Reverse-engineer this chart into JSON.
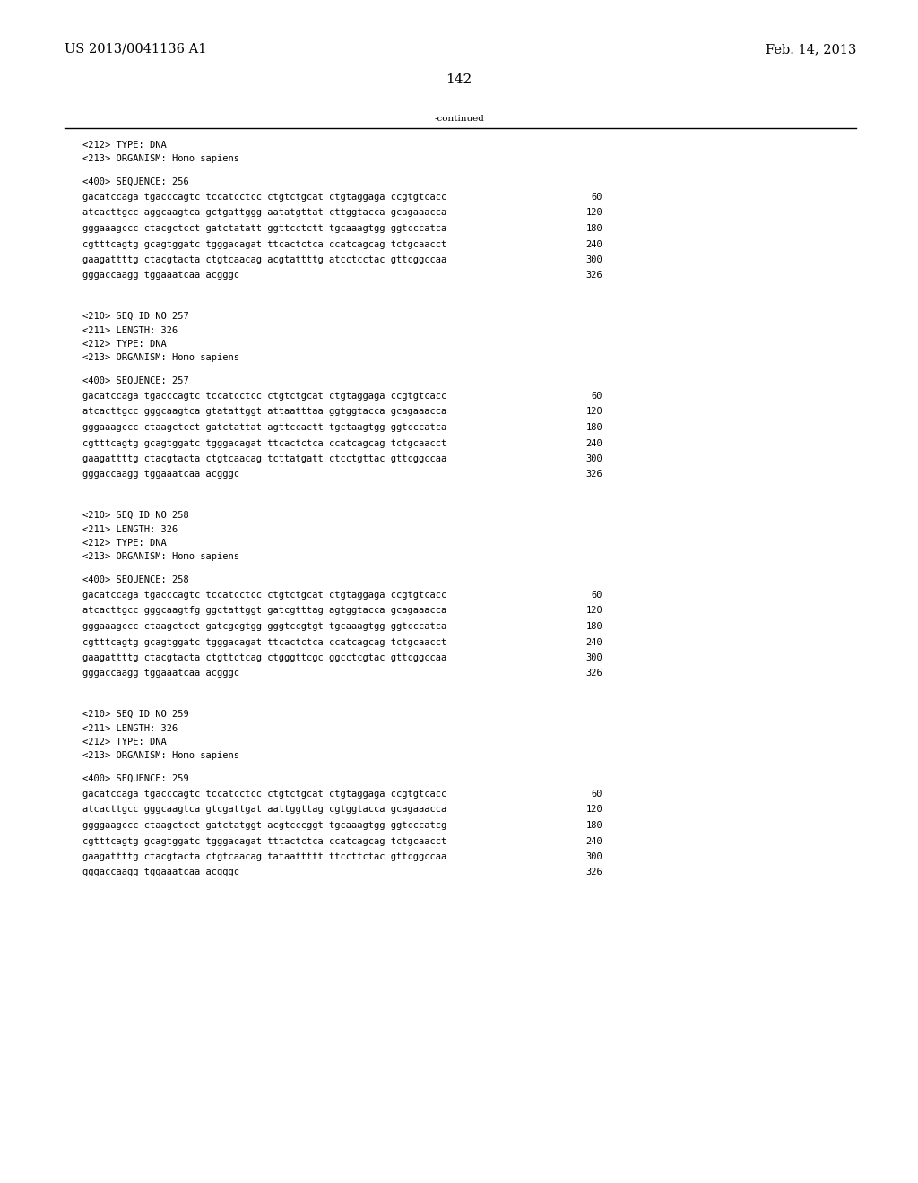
{
  "header_left": "US 2013/0041136 A1",
  "header_right": "Feb. 14, 2013",
  "page_number": "142",
  "continued_label": "-continued",
  "background_color": "#ffffff",
  "text_color": "#000000",
  "font_size_header": 10.5,
  "font_size_body": 7.5,
  "font_size_page": 11,
  "sections": [
    {
      "meta": [
        "<212> TYPE: DNA",
        "<213> ORGANISM: Homo sapiens"
      ],
      "sequence_label": "<400> SEQUENCE: 256",
      "lines": [
        [
          "gacatccaga tgacccagtc tccatcctcc ctgtctgcat ctgtaggaga ccgtgtcacc",
          "60"
        ],
        [
          "atcacttgcc aggcaagtca gctgattggg aatatgttat cttggtacca gcagaaacca",
          "120"
        ],
        [
          "gggaaagccc ctacgctcct gatctatatt ggttcctctt tgcaaagtgg ggtcccatca",
          "180"
        ],
        [
          "cgtttcagtg gcagtggatc tgggacagat ttcactctca ccatcagcag tctgcaacct",
          "240"
        ],
        [
          "gaagattttg ctacgtacta ctgtcaacag acgtattttg atcctcctac gttcggccaa",
          "300"
        ],
        [
          "gggaccaagg tggaaatcaa acgggc",
          "326"
        ]
      ]
    },
    {
      "meta": [
        "<210> SEQ ID NO 257",
        "<211> LENGTH: 326",
        "<212> TYPE: DNA",
        "<213> ORGANISM: Homo sapiens"
      ],
      "sequence_label": "<400> SEQUENCE: 257",
      "lines": [
        [
          "gacatccaga tgacccagtc tccatcctcc ctgtctgcat ctgtaggaga ccgtgtcacc",
          "60"
        ],
        [
          "atcacttgcc gggcaagtca gtatattggt attaatttaa ggtggtacca gcagaaacca",
          "120"
        ],
        [
          "gggaaagccc ctaagctcct gatctattat agttccactt tgctaagtgg ggtcccatca",
          "180"
        ],
        [
          "cgtttcagtg gcagtggatc tgggacagat ttcactctca ccatcagcag tctgcaacct",
          "240"
        ],
        [
          "gaagattttg ctacgtacta ctgtcaacag tcttatgatt ctcctgttac gttcggccaa",
          "300"
        ],
        [
          "gggaccaagg tggaaatcaa acgggc",
          "326"
        ]
      ]
    },
    {
      "meta": [
        "<210> SEQ ID NO 258",
        "<211> LENGTH: 326",
        "<212> TYPE: DNA",
        "<213> ORGANISM: Homo sapiens"
      ],
      "sequence_label": "<400> SEQUENCE: 258",
      "lines": [
        [
          "gacatccaga tgacccagtc tccatcctcc ctgtctgcat ctgtaggaga ccgtgtcacc",
          "60"
        ],
        [
          "atcacttgcc gggcaagtfg ggctattggt gatcgtttag agtggtacca gcagaaacca",
          "120"
        ],
        [
          "gggaaagccc ctaagctcct gatcgcgtgg gggtccgtgt tgcaaagtgg ggtcccatca",
          "180"
        ],
        [
          "cgtttcagtg gcagtggatc tgggacagat ttcactctca ccatcagcag tctgcaacct",
          "240"
        ],
        [
          "gaagattttg ctacgtacta ctgttctcag ctgggttcgc ggcctcgtac gttcggccaa",
          "300"
        ],
        [
          "gggaccaagg tggaaatcaa acgggc",
          "326"
        ]
      ]
    },
    {
      "meta": [
        "<210> SEQ ID NO 259",
        "<211> LENGTH: 326",
        "<212> TYPE: DNA",
        "<213> ORGANISM: Homo sapiens"
      ],
      "sequence_label": "<400> SEQUENCE: 259",
      "lines": [
        [
          "gacatccaga tgacccagtc tccatcctcc ctgtctgcat ctgtaggaga ccgtgtcacc",
          "60"
        ],
        [
          "atcacttgcc gggcaagtca gtcgattgat aattggttag cgtggtacca gcagaaacca",
          "120"
        ],
        [
          "ggggaagccc ctaagctcct gatctatggt acgtcccggt tgcaaagtgg ggtcccatcg",
          "180"
        ],
        [
          "cgtttcagtg gcagtggatc tgggacagat tttactctca ccatcagcag tctgcaacct",
          "240"
        ],
        [
          "gaagattttg ctacgtacta ctgtcaacag tataattttt ttccttctac gttcggccaa",
          "300"
        ],
        [
          "gggaccaagg tggaaatcaa acgggc",
          "326"
        ]
      ]
    }
  ]
}
